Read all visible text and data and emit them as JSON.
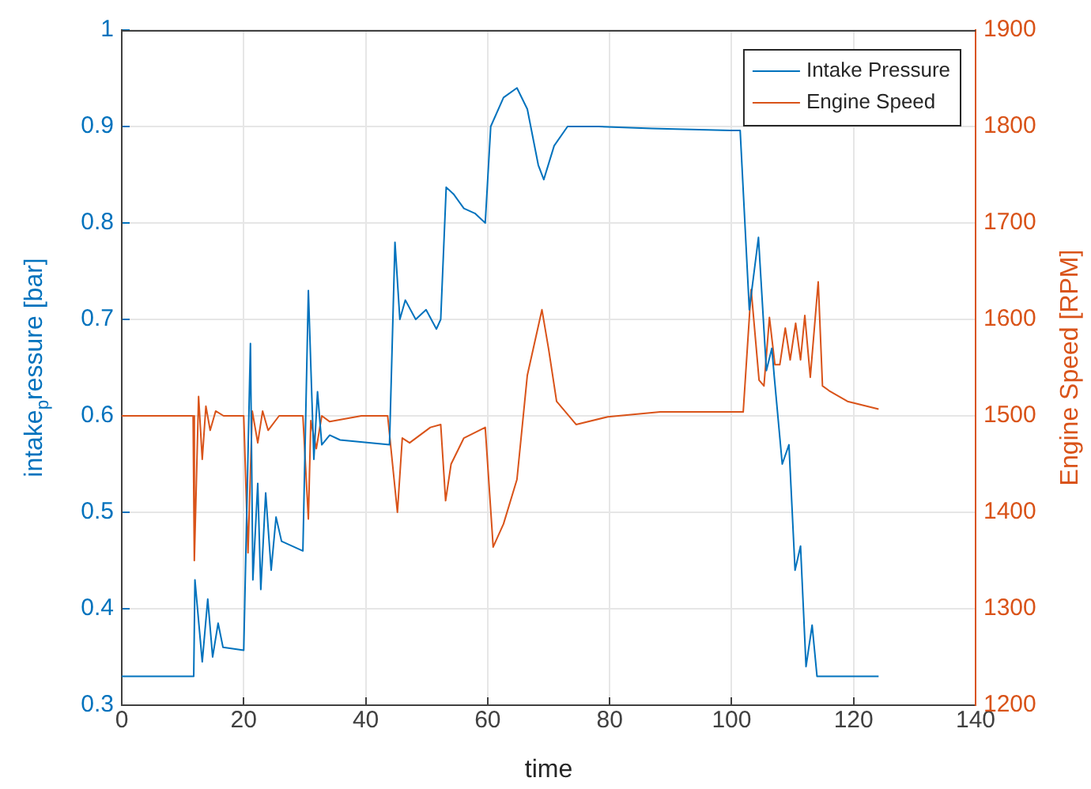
{
  "chart_data": {
    "type": "line",
    "xlabel": "time",
    "ylabel": "intake$_{p}$ressure [bar]",
    "y2label": "Engine Speed [RPM]",
    "xlim": [
      0,
      140
    ],
    "xticks": [
      0,
      20,
      40,
      60,
      80,
      100,
      120,
      140
    ],
    "ylim": [
      0.3,
      1
    ],
    "yticks": [
      0.3,
      0.4,
      0.5,
      0.6,
      0.7,
      0.8,
      0.9,
      1
    ],
    "y2lim": [
      1200,
      1900
    ],
    "y2ticks": [
      1200,
      1300,
      1400,
      1500,
      1600,
      1700,
      1800,
      1900
    ],
    "grid": true,
    "legend": "top right",
    "marker": "none",
    "line_style": "solid",
    "series": [
      {
        "name": "Intake Pressure",
        "color": "#0072bd",
        "x": [
          0,
          11.8,
          12.0,
          13.2,
          14.1,
          14.9,
          15.8,
          16.6,
          20.0,
          21.1,
          21.5,
          22.3,
          22.8,
          23.6,
          24.5,
          25.3,
          26.2,
          29.7,
          30.6,
          31.5,
          32.1,
          32.8,
          34.1,
          35.8,
          43.9,
          44.8,
          45.6,
          46.5,
          48.2,
          49.9,
          51.6,
          52.3,
          53.2,
          54.4,
          56.1,
          57.9,
          59.6,
          60.5,
          62.6,
          64.8,
          66.5,
          68.3,
          69.2,
          70.9,
          73.1,
          78.2,
          86.9,
          99.8,
          101.4,
          102.9,
          104.4,
          105.7,
          106.6,
          107.0,
          108.3,
          109.4,
          110.4,
          111.3,
          112.2,
          113.2,
          114.0,
          124.1
        ],
        "values": [
          0.33,
          0.33,
          0.43,
          0.345,
          0.41,
          0.35,
          0.385,
          0.36,
          0.357,
          0.675,
          0.43,
          0.53,
          0.42,
          0.52,
          0.44,
          0.495,
          0.47,
          0.46,
          0.73,
          0.555,
          0.625,
          0.57,
          0.58,
          0.575,
          0.57,
          0.78,
          0.7,
          0.72,
          0.7,
          0.71,
          0.69,
          0.7,
          0.837,
          0.83,
          0.815,
          0.81,
          0.8,
          0.9,
          0.93,
          0.94,
          0.918,
          0.86,
          0.845,
          0.88,
          0.9,
          0.9,
          0.898,
          0.896,
          0.896,
          0.71,
          0.785,
          0.647,
          0.67,
          0.64,
          0.55,
          0.57,
          0.44,
          0.465,
          0.34,
          0.383,
          0.33,
          0.33
        ]
      },
      {
        "name": "Engine Speed",
        "color": "#d95319",
        "axis": "y2",
        "x": [
          0,
          11.7,
          11.9,
          12.6,
          13.2,
          13.8,
          14.5,
          15.4,
          16.7,
          20.0,
          20.7,
          21.4,
          22.3,
          23.1,
          24.0,
          25.8,
          29.7,
          30.6,
          31.0,
          31.9,
          32.8,
          34.1,
          39.3,
          43.6,
          45.2,
          46.0,
          47.2,
          50.6,
          52.3,
          53.1,
          54.0,
          56.1,
          59.6,
          60.9,
          62.6,
          64.8,
          66.5,
          68.9,
          70.0,
          71.3,
          74.5,
          79.7,
          88.3,
          96.9,
          101.9,
          103.2,
          104.5,
          105.3,
          106.2,
          107.1,
          107.9,
          108.8,
          109.6,
          110.5,
          111.3,
          112.0,
          112.9,
          114.2,
          114.9,
          116.0,
          119.0,
          124.1
        ],
        "values": [
          1500,
          1500,
          1350,
          1520,
          1455,
          1510,
          1485,
          1505,
          1500,
          1500,
          1358,
          1505,
          1472,
          1505,
          1485,
          1500,
          1500,
          1393,
          1495,
          1466,
          1500,
          1494,
          1500,
          1500,
          1400,
          1477,
          1472,
          1488,
          1491,
          1412,
          1450,
          1477,
          1488,
          1364,
          1388,
          1434,
          1542,
          1610,
          1569,
          1515,
          1491,
          1499,
          1504,
          1504,
          1504,
          1631,
          1537,
          1531,
          1602,
          1553,
          1553,
          1591,
          1558,
          1596,
          1558,
          1604,
          1540,
          1639,
          1531,
          1526,
          1515,
          1507
        ]
      }
    ]
  }
}
